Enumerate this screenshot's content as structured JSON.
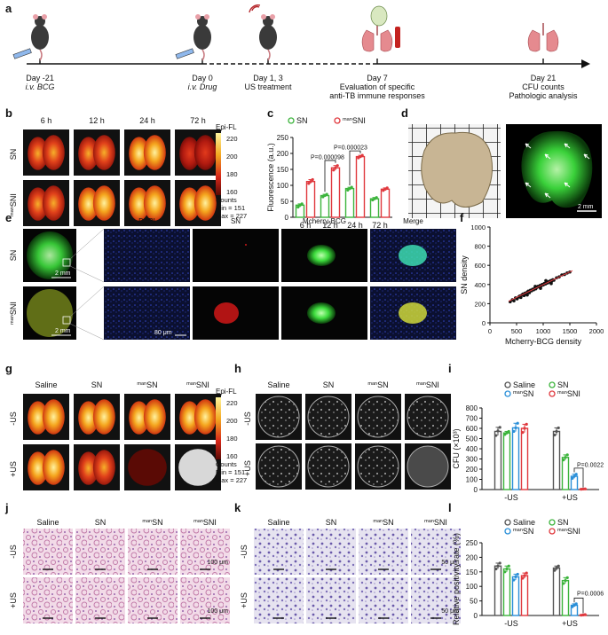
{
  "panels": [
    "a",
    "b",
    "c",
    "d",
    "e",
    "f",
    "g",
    "h",
    "i",
    "j",
    "k",
    "l"
  ],
  "colors": {
    "sn": "#3cb43c",
    "mansn": "#2a8fd8",
    "mansni": "#e0393e",
    "saline": "#555555",
    "heat_hi": "#fff6a0",
    "heat_mid": "#e23a1c",
    "heat_lo": "#5a0a05",
    "fluor_green": "#3ddc3d",
    "dapi_blue": "#1a2a9a"
  },
  "timeline": {
    "events": [
      {
        "day": "Day -21",
        "desc": "i.v. BCG",
        "icon": "syringe-mouse-icon"
      },
      {
        "day": "Day 0",
        "desc": "i.v. Drug",
        "icon": "syringe-mouse-icon"
      },
      {
        "day": "Day 1, 3",
        "desc": "US treatment",
        "icon": "ultrasound-mouse-icon"
      },
      {
        "day": "Day 7",
        "desc": "Evaluation of specific",
        "desc2": "anti-TB immune responses",
        "icon": "lung-spleen-blood-icon"
      },
      {
        "day": "Day 21",
        "desc": "CFU counts",
        "desc2": "Pathologic analysis",
        "icon": "lung-icon"
      }
    ]
  },
  "panel_b": {
    "cols": [
      "6 h",
      "12 h",
      "24 h",
      "72 h"
    ],
    "rows": [
      "SN",
      "manSNI"
    ],
    "colorbar": {
      "title": "Epi-FL",
      "ticks": [
        "220",
        "200",
        "180",
        "160"
      ],
      "unit": "Counts",
      "min_label": "Min = 151",
      "max_label": "Max = 227"
    }
  },
  "panel_d": {
    "scale": "2 mm"
  },
  "panel_e": {
    "rows": [
      "SN",
      "manSNI"
    ],
    "cols": [
      "DAPI",
      "SN",
      "Mcherry-BCG",
      "Merge"
    ],
    "scale_whole": "2 mm",
    "scale_zoom": "80 μm"
  },
  "panel_g": {
    "cols": [
      "Saline",
      "SN",
      "manSN",
      "manSNI"
    ],
    "rows": [
      "-US",
      "+US"
    ],
    "colorbar": {
      "title": "Epi-FL",
      "ticks": [
        "220",
        "200",
        "180",
        "160"
      ],
      "unit": "Counts",
      "min_label": "Min = 151",
      "max_label": "Max = 227"
    }
  },
  "panel_h": {
    "cols": [
      "Saline",
      "SN",
      "manSN",
      "manSNI"
    ],
    "rows": [
      "-US",
      "+US"
    ]
  },
  "panel_j": {
    "cols": [
      "Saline",
      "SN",
      "manSN",
      "manSNI"
    ],
    "rows": [
      "-US",
      "+US"
    ],
    "scale": "100 μm"
  },
  "panel_k": {
    "cols": [
      "Saline",
      "SN",
      "manSN",
      "manSNI"
    ],
    "rows": [
      "-US",
      "+US"
    ],
    "scale": "50 μm"
  },
  "chart_data": [
    {
      "id": "c",
      "type": "bar",
      "ylabel": "Fluorescence (a.u.)",
      "categories": [
        "6 h",
        "12 h",
        "24 h",
        "72 h"
      ],
      "ylim": [
        0,
        250
      ],
      "yticks": [
        0,
        50,
        100,
        150,
        200,
        250
      ],
      "series": [
        {
          "name": "SN",
          "values": [
            38,
            68,
            90,
            58
          ],
          "points": [
            [
              32,
              38,
              42
            ],
            [
              64,
              68,
              72
            ],
            [
              85,
              90,
              94
            ],
            [
              54,
              58,
              62
            ]
          ]
        },
        {
          "name": "manSNI",
          "values": [
            112,
            155,
            190,
            88
          ],
          "points": [
            [
              106,
              112,
              118
            ],
            [
              148,
              155,
              162
            ],
            [
              186,
              190,
              194
            ],
            [
              84,
              88,
              92
            ]
          ]
        }
      ],
      "annotations": [
        "P=0.000098",
        "P=0.000023"
      ]
    },
    {
      "id": "f",
      "type": "scatter",
      "xlabel": "Mcherry-BCG density",
      "ylabel": "SN density",
      "xlim": [
        0,
        2000
      ],
      "ylim": [
        0,
        1000
      ],
      "xticks": [
        0,
        500,
        1000,
        1500,
        2000
      ],
      "yticks": [
        0,
        200,
        400,
        600,
        800,
        1000
      ],
      "points": [
        [
          380,
          220
        ],
        [
          420,
          240
        ],
        [
          450,
          230
        ],
        [
          480,
          260
        ],
        [
          510,
          250
        ],
        [
          540,
          270
        ],
        [
          560,
          280
        ],
        [
          580,
          265
        ],
        [
          600,
          290
        ],
        [
          620,
          300
        ],
        [
          640,
          285
        ],
        [
          660,
          310
        ],
        [
          680,
          300
        ],
        [
          700,
          320
        ],
        [
          720,
          330
        ],
        [
          740,
          315
        ],
        [
          760,
          340
        ],
        [
          780,
          335
        ],
        [
          800,
          350
        ],
        [
          820,
          345
        ],
        [
          840,
          360
        ],
        [
          860,
          355
        ],
        [
          880,
          370
        ],
        [
          900,
          380
        ],
        [
          920,
          375
        ],
        [
          940,
          390
        ],
        [
          960,
          385
        ],
        [
          980,
          400
        ],
        [
          1000,
          395
        ],
        [
          1020,
          410
        ],
        [
          1040,
          405
        ],
        [
          1060,
          420
        ],
        [
          1080,
          415
        ],
        [
          1100,
          430
        ],
        [
          1120,
          425
        ],
        [
          1140,
          440
        ],
        [
          1160,
          435
        ],
        [
          1180,
          450
        ],
        [
          1200,
          445
        ],
        [
          1250,
          470
        ],
        [
          1300,
          480
        ],
        [
          1350,
          500
        ],
        [
          1400,
          505
        ],
        [
          1450,
          520
        ],
        [
          1500,
          530
        ],
        [
          700,
          290
        ],
        [
          850,
          380
        ],
        [
          950,
          360
        ],
        [
          1050,
          440
        ],
        [
          1150,
          410
        ]
      ],
      "fit": [
        [
          350,
          225
        ],
        [
          1550,
          545
        ]
      ]
    },
    {
      "id": "i",
      "type": "bar",
      "ylabel": "CFU (×10³)",
      "categories": [
        "-US",
        "+US"
      ],
      "ylim": [
        0,
        800
      ],
      "yticks": [
        0,
        100,
        200,
        300,
        400,
        500,
        600,
        700,
        800
      ],
      "series": [
        {
          "name": "Saline",
          "values": [
            570,
            570
          ],
          "points": [
            [
              530,
              575,
              610
            ],
            [
              535,
              570,
              605
            ]
          ]
        },
        {
          "name": "SN",
          "values": [
            555,
            315
          ],
          "points": [
            [
              540,
              555,
              570
            ],
            [
              290,
              315,
              340
            ]
          ]
        },
        {
          "name": "manSN",
          "values": [
            605,
            130
          ],
          "points": [
            [
              570,
              605,
              650
            ],
            [
              110,
              130,
              150
            ]
          ]
        },
        {
          "name": "manSNI",
          "values": [
            600,
            5
          ],
          "points": [
            [
              560,
              600,
              640
            ],
            [
              3,
              5,
              7
            ]
          ]
        }
      ],
      "annotations": [
        "P=0.0022"
      ]
    },
    {
      "id": "l",
      "type": "bar",
      "ylabel": "Relative positivity rate (%)",
      "categories": [
        "-US",
        "+US"
      ],
      "ylim": [
        0,
        250
      ],
      "yticks": [
        0,
        50,
        100,
        150,
        200,
        250
      ],
      "series": [
        {
          "name": "Saline",
          "values": [
            170,
            163
          ],
          "points": [
            [
              160,
              170,
              180
            ],
            [
              155,
              163,
              170
            ]
          ]
        },
        {
          "name": "SN",
          "values": [
            160,
            120
          ],
          "points": [
            [
              150,
              160,
              170
            ],
            [
              110,
              120,
              130
            ]
          ]
        },
        {
          "name": "manSN",
          "values": [
            133,
            35
          ],
          "points": [
            [
              122,
              133,
              142
            ],
            [
              30,
              35,
              40
            ]
          ]
        },
        {
          "name": "manSNI",
          "values": [
            137,
            2
          ],
          "points": [
            [
              128,
              137,
              146
            ],
            [
              1,
              2,
              3
            ]
          ]
        }
      ],
      "annotations": [
        "P=0.0006"
      ]
    }
  ],
  "legend_c": [
    {
      "name": "SN",
      "sup": ""
    },
    {
      "name": "SNI",
      "sup": "man"
    }
  ],
  "legend_il": [
    {
      "name": "Saline",
      "sup": ""
    },
    {
      "name": "SN",
      "sup": ""
    },
    {
      "name": "SN",
      "sup": "man"
    },
    {
      "name": "SNI",
      "sup": "man"
    }
  ]
}
